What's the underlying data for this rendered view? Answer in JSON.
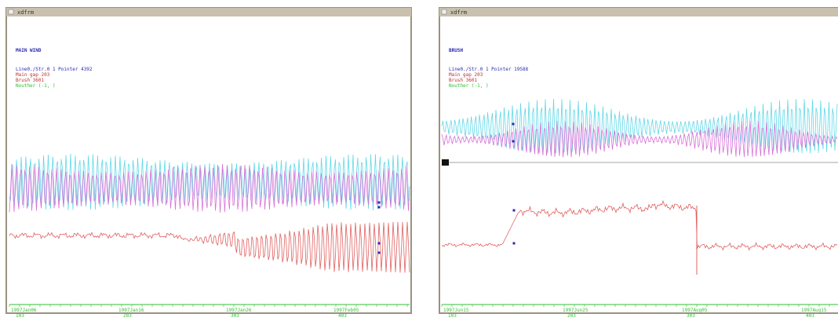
{
  "windows": [
    {
      "title": "xdfrm",
      "heading": "MAIN WIND",
      "info": [
        "Line0./Str.0 1  Pointer  4392",
        "Main gap 203",
        "Brush  3601",
        "Nouther (-1, )"
      ],
      "axis_labels": [
        [
          "1997Jan06",
          "103"
        ],
        [
          "1997Jan16",
          "203"
        ],
        [
          "1997Jan26",
          "303"
        ],
        [
          "1997Feb05",
          "403"
        ]
      ]
    },
    {
      "title": "xdfrm",
      "heading": "BRUSH",
      "info": [
        "Line0./Str.0 1  Pointer 19588",
        "Main gap 203",
        "Brush  3601",
        "Nouther (-1, )"
      ],
      "axis_labels": [
        [
          "1997Jun15",
          "103"
        ],
        [
          "1997Jun25",
          "203"
        ],
        [
          "1997Aug05",
          "303"
        ],
        [
          "1997Aug15",
          "403"
        ]
      ]
    }
  ]
}
